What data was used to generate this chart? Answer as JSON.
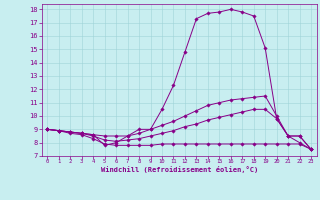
{
  "title": "",
  "xlabel": "Windchill (Refroidissement éolien,°C)",
  "xlim": [
    -0.5,
    23.5
  ],
  "ylim": [
    7,
    18.4
  ],
  "xticks": [
    0,
    1,
    2,
    3,
    4,
    5,
    6,
    7,
    8,
    9,
    10,
    11,
    12,
    13,
    14,
    15,
    16,
    17,
    18,
    19,
    20,
    21,
    22,
    23
  ],
  "yticks": [
    7,
    8,
    9,
    10,
    11,
    12,
    13,
    14,
    15,
    16,
    17,
    18
  ],
  "bg_color": "#c8eef0",
  "line_color": "#880088",
  "grid_color": "#9fd4d8",
  "lines": [
    {
      "x": [
        0,
        1,
        2,
        3,
        4,
        5,
        6,
        7,
        8,
        9,
        10,
        11,
        12,
        13,
        14,
        15,
        16,
        17,
        18,
        19,
        20,
        21,
        22,
        23
      ],
      "y": [
        9.0,
        8.9,
        8.8,
        8.7,
        8.6,
        7.8,
        8.0,
        8.5,
        9.0,
        9.0,
        10.5,
        12.3,
        14.8,
        17.3,
        17.7,
        17.8,
        18.0,
        17.8,
        17.5,
        15.1,
        9.8,
        8.5,
        8.5,
        7.5
      ]
    },
    {
      "x": [
        0,
        1,
        2,
        3,
        4,
        5,
        6,
        7,
        8,
        9,
        10,
        11,
        12,
        13,
        14,
        15,
        16,
        17,
        18,
        19,
        20,
        21,
        22,
        23
      ],
      "y": [
        9.0,
        8.9,
        8.8,
        8.7,
        8.6,
        8.5,
        8.5,
        8.5,
        8.7,
        9.0,
        9.3,
        9.6,
        10.0,
        10.4,
        10.8,
        11.0,
        11.2,
        11.3,
        11.4,
        11.5,
        10.0,
        8.5,
        8.5,
        7.5
      ]
    },
    {
      "x": [
        0,
        1,
        2,
        3,
        4,
        5,
        6,
        7,
        8,
        9,
        10,
        11,
        12,
        13,
        14,
        15,
        16,
        17,
        18,
        19,
        20,
        21,
        22,
        23
      ],
      "y": [
        9.0,
        8.9,
        8.8,
        8.7,
        8.5,
        8.2,
        8.1,
        8.2,
        8.3,
        8.5,
        8.7,
        8.9,
        9.2,
        9.4,
        9.7,
        9.9,
        10.1,
        10.3,
        10.5,
        10.5,
        9.8,
        8.5,
        8.0,
        7.5
      ]
    },
    {
      "x": [
        0,
        1,
        2,
        3,
        4,
        5,
        6,
        7,
        8,
        9,
        10,
        11,
        12,
        13,
        14,
        15,
        16,
        17,
        18,
        19,
        20,
        21,
        22,
        23
      ],
      "y": [
        9.0,
        8.9,
        8.7,
        8.6,
        8.3,
        7.9,
        7.8,
        7.8,
        7.8,
        7.8,
        7.9,
        7.9,
        7.9,
        7.9,
        7.9,
        7.9,
        7.9,
        7.9,
        7.9,
        7.9,
        7.9,
        7.9,
        7.9,
        7.5
      ]
    }
  ]
}
